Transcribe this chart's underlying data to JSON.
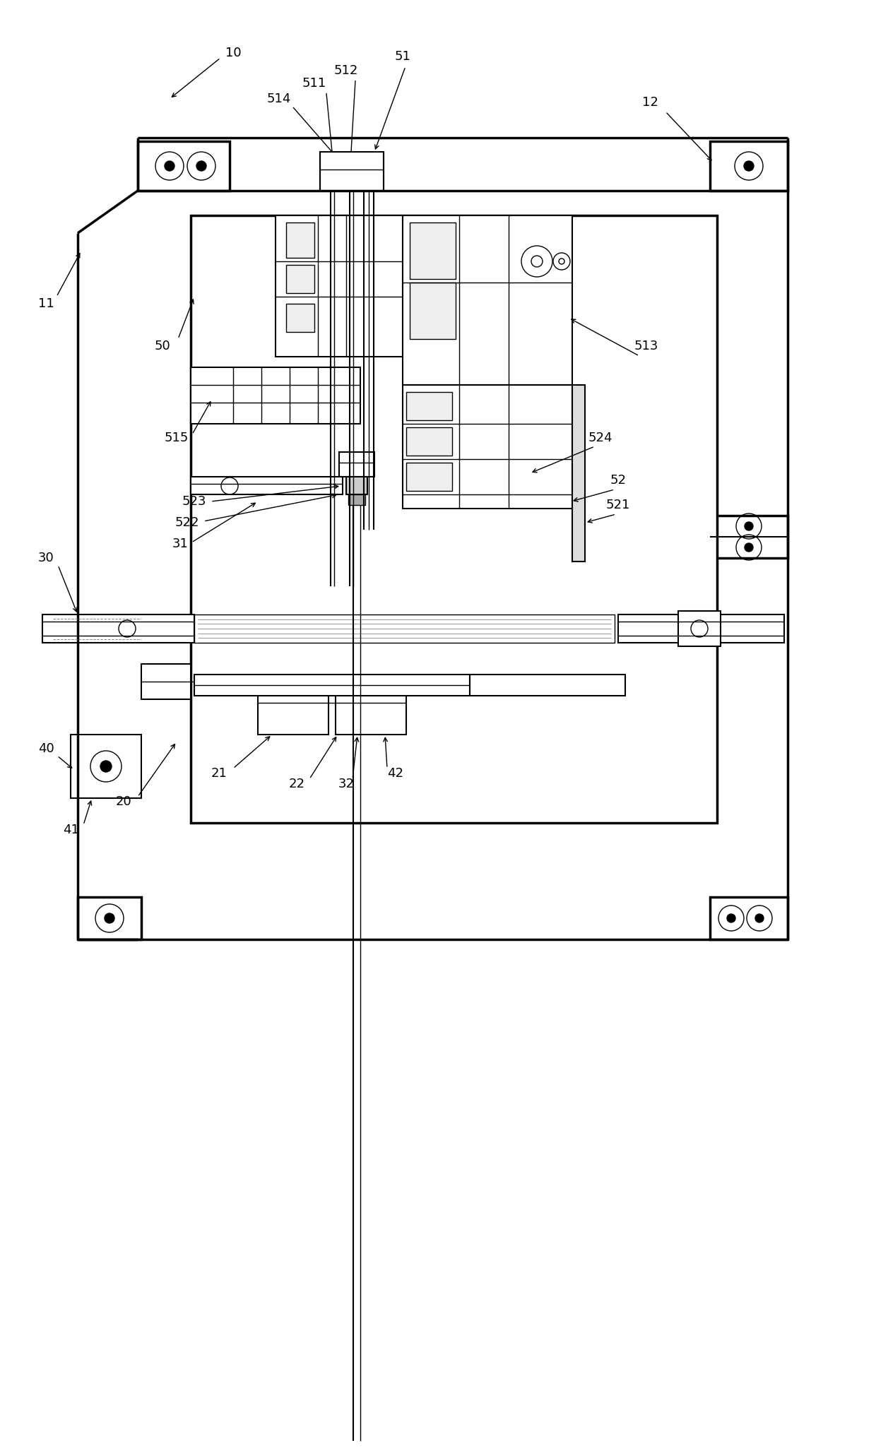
{
  "bg_color": "#ffffff",
  "fig_width": 12.4,
  "fig_height": 20.6,
  "dpi": 100
}
